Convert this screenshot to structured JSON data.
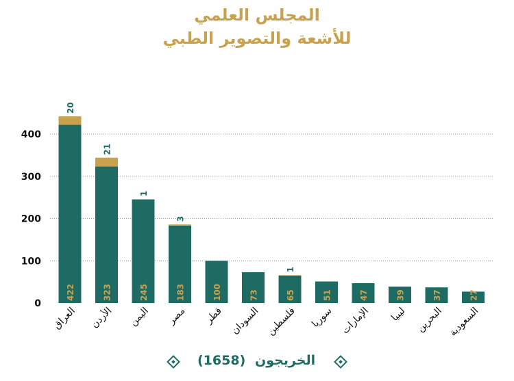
{
  "title_line1": "المجلس العلمي",
  "title_line2": "للأشعة والتصوير الطبي",
  "legend": {
    "label": "الخريجون",
    "total": "(1658)"
  },
  "colors": {
    "primary": "#1e6b64",
    "secondary": "#c9a24f",
    "grid": "#999999"
  },
  "chart_data": {
    "type": "bar",
    "stacked": true,
    "categories": [
      "العراق",
      "الأردن",
      "اليمن",
      "مصر",
      "قطر",
      "السودان",
      "فلسطين",
      "سوريا",
      "الإمارات",
      "ليبيا",
      "البحرين",
      "السعودية"
    ],
    "series": [
      {
        "values": [
          422,
          323,
          245,
          183,
          100,
          73,
          65,
          51,
          47,
          39,
          37,
          27
        ]
      },
      {
        "values": [
          20,
          21,
          1,
          3,
          0,
          0,
          1,
          0,
          0,
          0,
          0,
          0
        ]
      }
    ],
    "yticks": [
      0,
      100,
      200,
      300,
      400
    ],
    "ylim": [
      0,
      440
    ],
    "grid": true
  }
}
